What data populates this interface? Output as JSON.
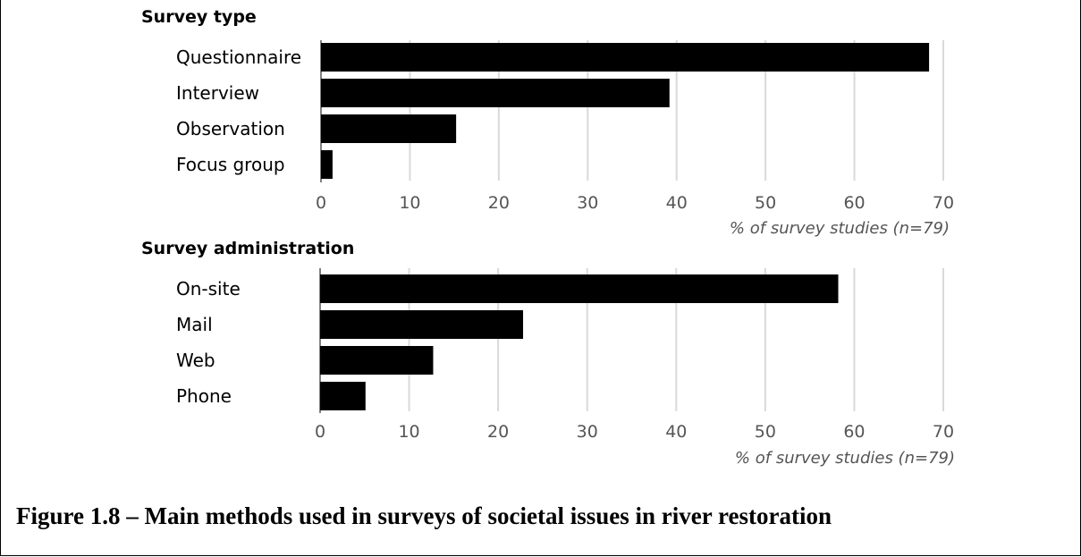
{
  "caption": "Figure 1.8 – Main methods used in surveys of societal issues in river restoration",
  "chart_data": [
    {
      "type": "bar",
      "orientation": "horizontal",
      "title": "Survey type",
      "categories": [
        "Questionnaire",
        "Interview",
        "Observation",
        "Focus group"
      ],
      "values": [
        68.4,
        39.2,
        15.2,
        1.3
      ],
      "xlabel": "% of survey studies (n=79)",
      "xlim": [
        0,
        70
      ],
      "xticks": [
        "0",
        "10",
        "20",
        "30",
        "40",
        "50",
        "60",
        "70"
      ],
      "grid": true,
      "bar_color": "#000000",
      "grid_color": "#d9d9d9"
    },
    {
      "type": "bar",
      "orientation": "horizontal",
      "title": "Survey administration",
      "categories": [
        "On-site",
        "Mail",
        "Web",
        "Phone"
      ],
      "values": [
        58.2,
        22.8,
        12.7,
        5.1
      ],
      "xlabel": "% of survey studies (n=79)",
      "xlim": [
        0,
        70
      ],
      "xticks": [
        "0",
        "10",
        "20",
        "30",
        "40",
        "50",
        "60",
        "70"
      ],
      "grid": true,
      "bar_color": "#000000",
      "grid_color": "#d9d9d9"
    }
  ]
}
